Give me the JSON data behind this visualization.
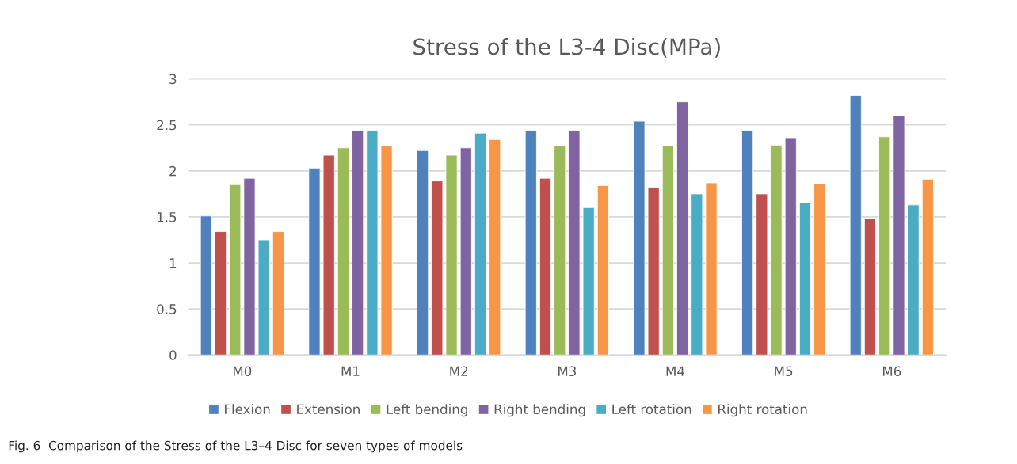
{
  "chart_data": {
    "type": "bar",
    "title": "Stress of the L3-4 Disc(MPa)",
    "categories": [
      "M0",
      "M1",
      "M2",
      "M3",
      "M4",
      "M5",
      "M6"
    ],
    "series": [
      {
        "name": "Flexion",
        "color": "#4f81bd",
        "values": [
          1.51,
          2.03,
          2.22,
          2.44,
          2.54,
          2.44,
          2.82
        ]
      },
      {
        "name": "Extension",
        "color": "#c0504d",
        "values": [
          1.34,
          2.17,
          1.89,
          1.92,
          1.82,
          1.75,
          1.48
        ]
      },
      {
        "name": "Left bending",
        "color": "#9bbb59",
        "values": [
          1.85,
          2.25,
          2.17,
          2.27,
          2.27,
          2.28,
          2.37
        ]
      },
      {
        "name": "Right bending",
        "color": "#8064a2",
        "values": [
          1.92,
          2.44,
          2.25,
          2.44,
          2.75,
          2.36,
          2.6
        ]
      },
      {
        "name": "Left rotation",
        "color": "#4bacc6",
        "values": [
          1.25,
          2.44,
          2.41,
          1.6,
          1.75,
          1.65,
          1.63
        ]
      },
      {
        "name": "Right rotation",
        "color": "#f79646",
        "values": [
          1.34,
          2.27,
          2.34,
          1.84,
          1.87,
          1.86,
          1.91
        ]
      }
    ],
    "ylim": [
      0,
      3
    ],
    "yticks": [
      0,
      0.5,
      1,
      1.5,
      2,
      2.5,
      3
    ],
    "grid": "y",
    "legend": "bottom",
    "annotations": [
      "Fig. 6  Comparison of the Stress of the L3–4 Disc for seven types of models"
    ]
  }
}
